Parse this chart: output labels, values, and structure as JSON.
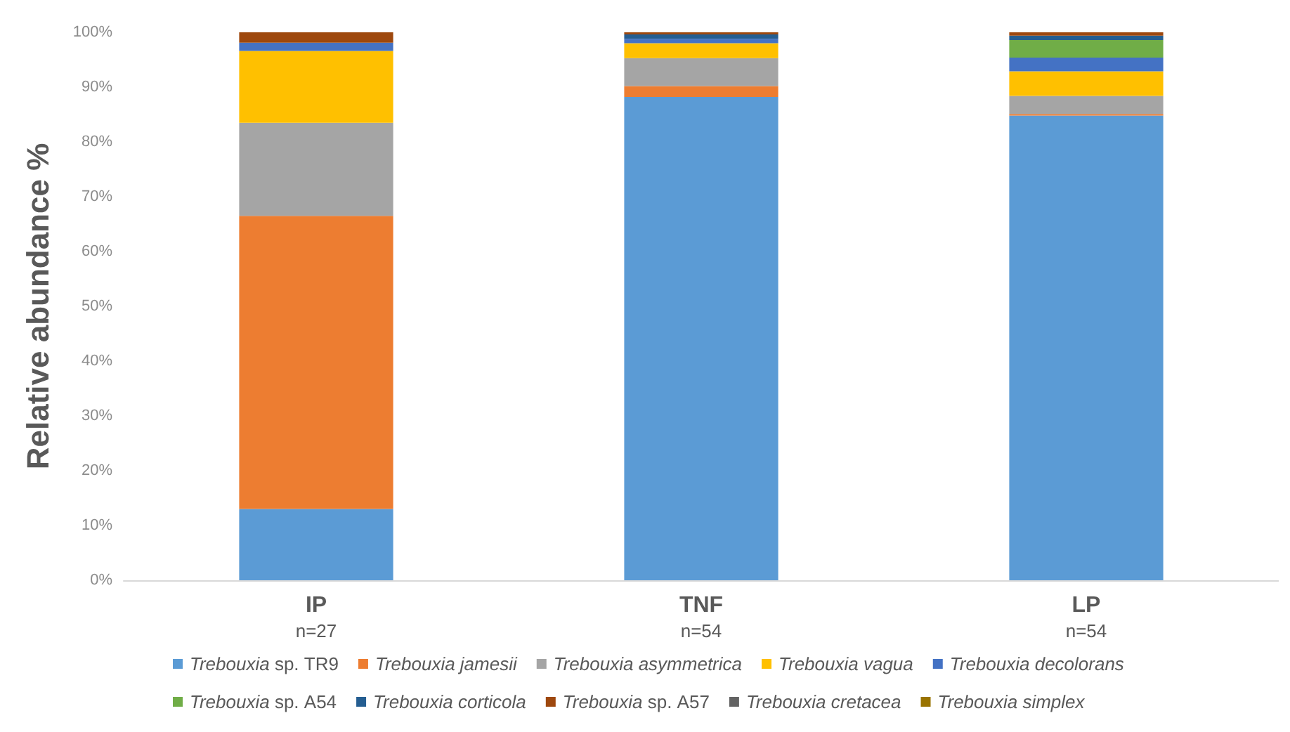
{
  "chart_data": {
    "type": "bar",
    "stacked": true,
    "ylabel": "Relative abundance %",
    "categories": [
      "IP\nn=27",
      "TNF\nn=54",
      "LP\nn=54"
    ],
    "series": [
      {
        "name": "Trebouxia sp. TR9",
        "color": "#5b9bd5",
        "values": [
          13,
          88.2,
          84.8
        ]
      },
      {
        "name": "Trebouxia jamesii",
        "color": "#ed7d31",
        "values": [
          53.5,
          2,
          0.3
        ]
      },
      {
        "name": "Trebouxia asymmetrica",
        "color": "#a5a5a5",
        "values": [
          17,
          5.1,
          3.3
        ]
      },
      {
        "name": "Trebouxia vagua",
        "color": "#ffc000",
        "values": [
          13.1,
          2.7,
          4.5
        ]
      },
      {
        "name": "Trebouxia decolorans",
        "color": "#4472c4",
        "values": [
          1.5,
          0.8,
          2.5
        ]
      },
      {
        "name": "Trebouxia sp. A54",
        "color": "#70ad47",
        "values": [
          0,
          0,
          3.2
        ]
      },
      {
        "name": "Trebouxia corticola",
        "color": "#255e91",
        "values": [
          0,
          0.8,
          0.8
        ]
      },
      {
        "name": "Trebouxia sp. A57",
        "color": "#9e480e",
        "values": [
          1.9,
          0.4,
          0.6
        ]
      },
      {
        "name": "Trebouxia cretacea",
        "color": "#636363",
        "values": [
          0,
          0,
          0
        ]
      },
      {
        "name": "Trebouxia simplex",
        "color": "#997300",
        "values": [
          0,
          0,
          0
        ]
      }
    ],
    "ylim": [
      0,
      100
    ],
    "yticks": [
      {
        "value": 0,
        "label": "0%"
      },
      {
        "value": 10,
        "label": "10%"
      },
      {
        "value": 20,
        "label": "20%"
      },
      {
        "value": 30,
        "label": "30%"
      },
      {
        "value": 40,
        "label": "40%"
      },
      {
        "value": 50,
        "label": "50%"
      },
      {
        "value": 60,
        "label": "60%"
      },
      {
        "value": 70,
        "label": "70%"
      },
      {
        "value": 80,
        "label": "80%"
      },
      {
        "value": 90,
        "label": "90%"
      },
      {
        "value": 100,
        "label": "100%"
      }
    ],
    "grid": false,
    "legend": "bottom"
  }
}
